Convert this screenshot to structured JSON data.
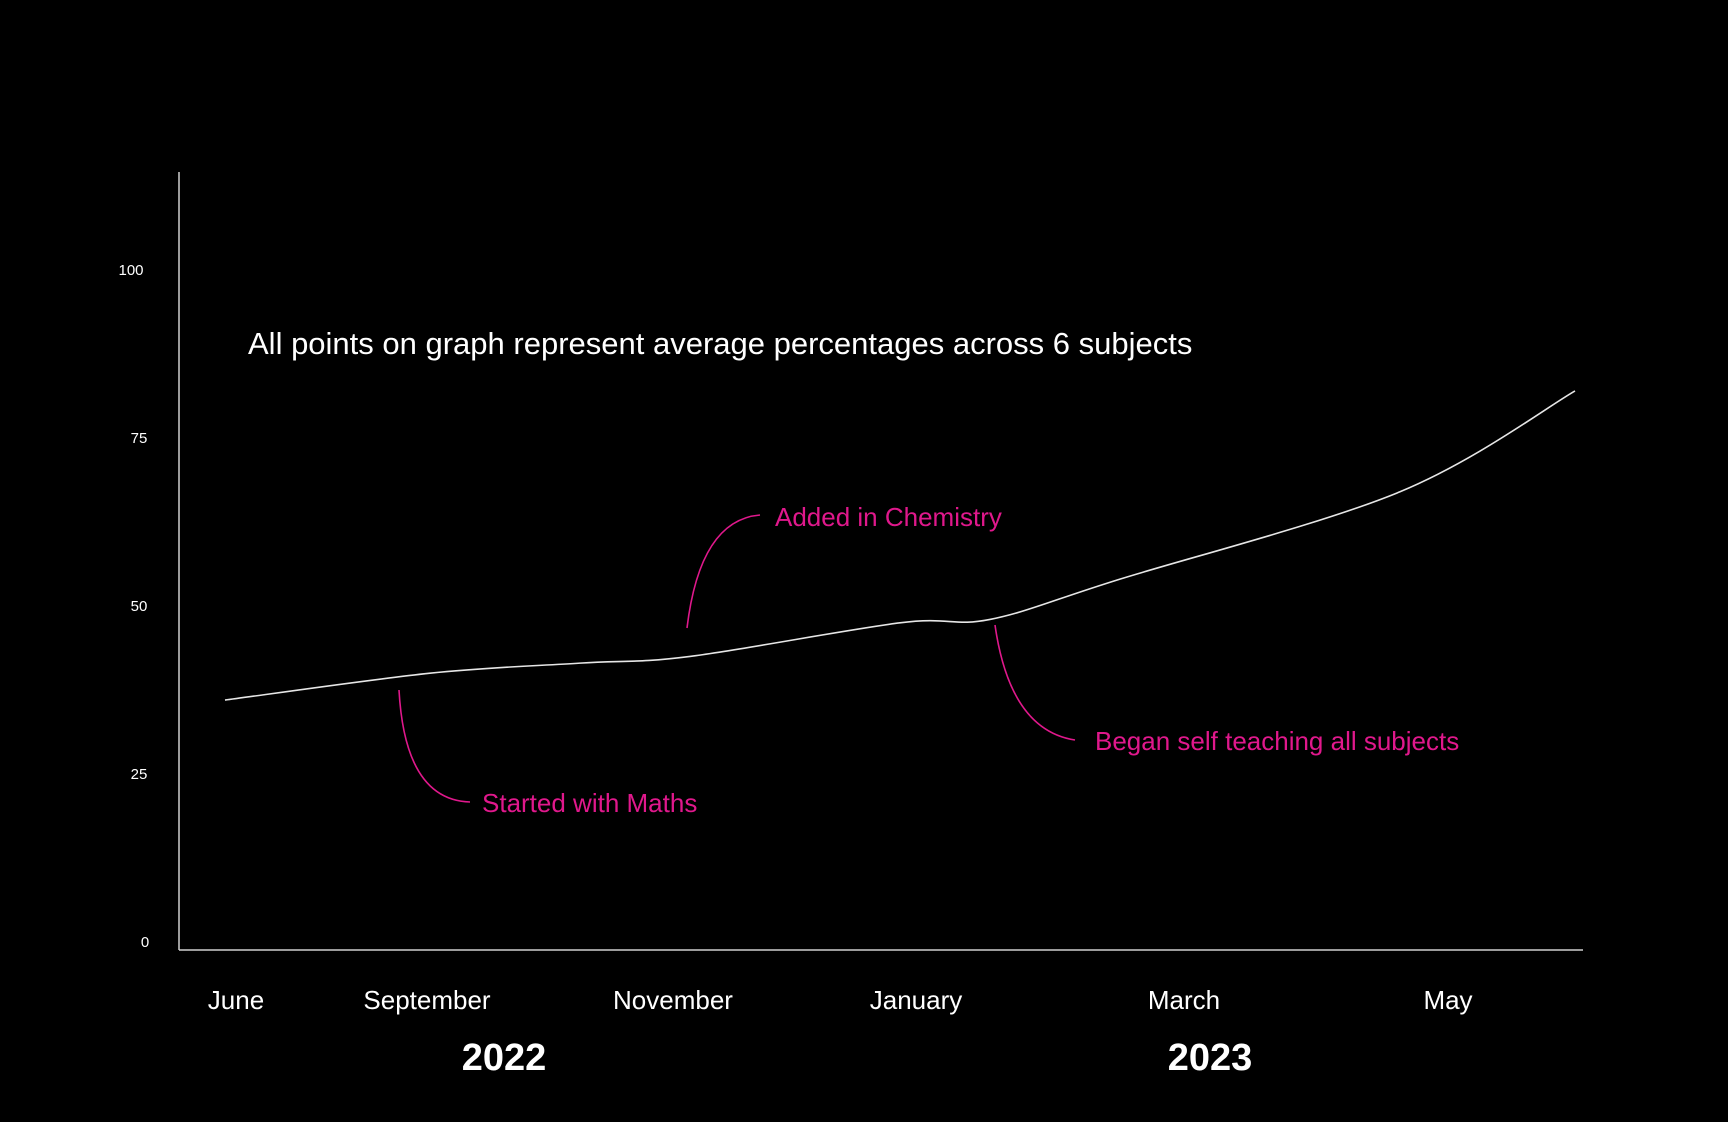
{
  "colors": {
    "background": "#000000",
    "axis": "#d0d0d0",
    "line": "#e6e6e6",
    "text": "#ffffff",
    "annotation": "#e0188c"
  },
  "chart_data": {
    "type": "line",
    "title": "",
    "note": "All points on graph represent average percentages across 6 subjects",
    "xlabel": "",
    "ylabel": "",
    "ylim": [
      0,
      100
    ],
    "y_ticks": [
      "0",
      "25",
      "50",
      "75",
      "100"
    ],
    "x_ticks": [
      "June",
      "September",
      "November",
      "January",
      "March",
      "May"
    ],
    "year_labels": [
      "2022",
      "2023"
    ],
    "series": [
      {
        "x": [
          "June",
          "September",
          "October",
          "November",
          "January",
          "late January",
          "March",
          "May",
          "June"
        ],
        "y": [
          36,
          40,
          41.5,
          42.5,
          47.5,
          48,
          54,
          67,
          82
        ]
      }
    ],
    "annotations": [
      {
        "text": "Started with Maths",
        "at": "September"
      },
      {
        "text": "Added in Chemistry",
        "at": "November"
      },
      {
        "text": "Began self teaching all subjects",
        "at": "late January"
      }
    ],
    "grid": false,
    "legend": "none"
  }
}
